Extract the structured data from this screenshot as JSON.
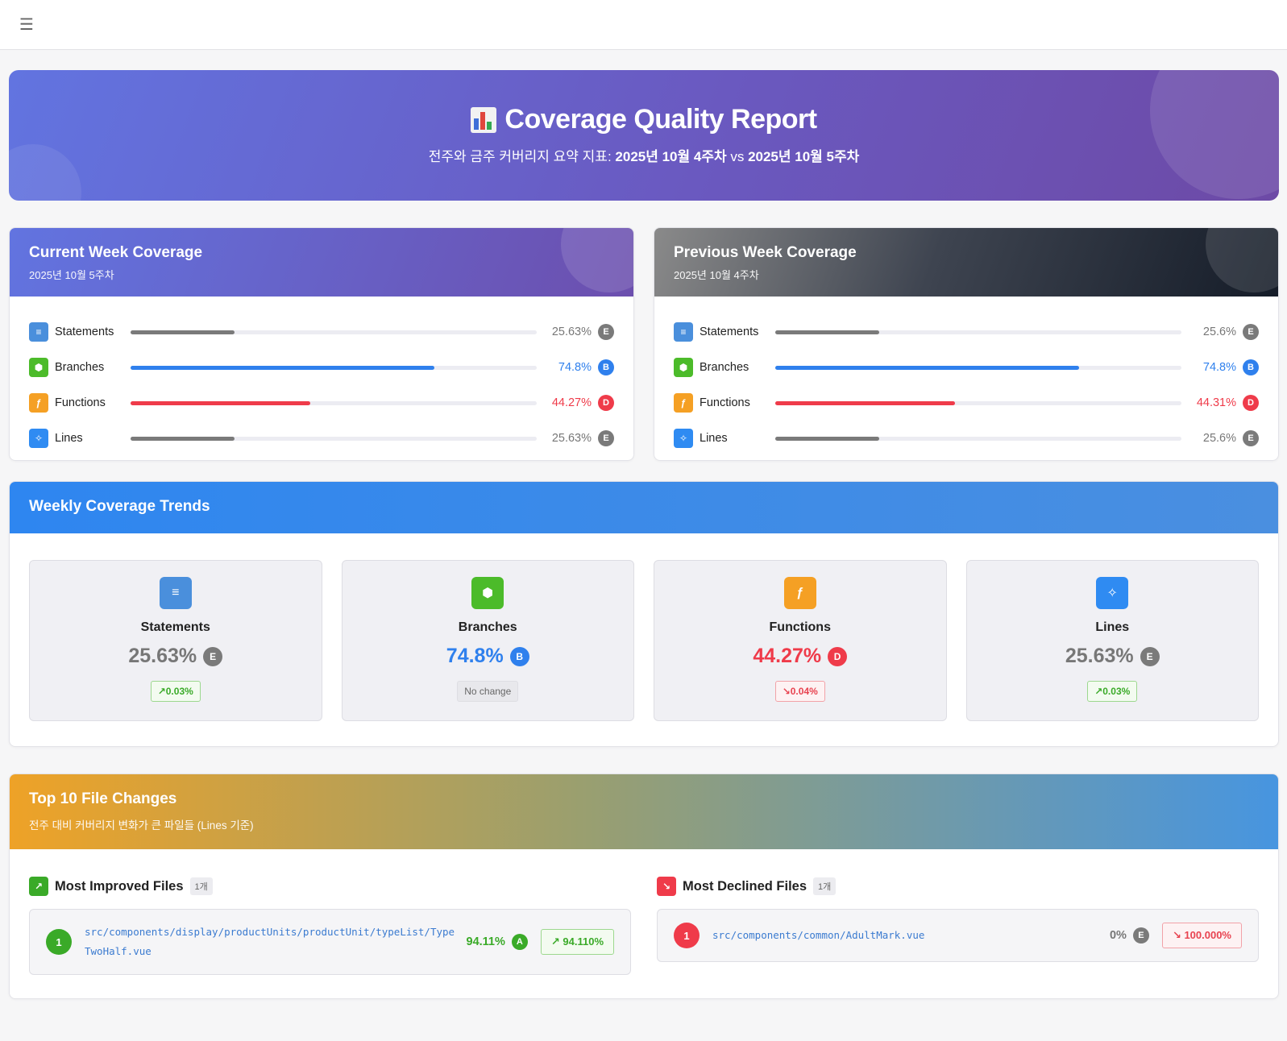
{
  "topbar": {
    "menu_icon": "menu-icon"
  },
  "hero": {
    "title": "Coverage Quality Report",
    "subtitle_prefix": "전주와 금주 커버리지 요약 지표: ",
    "prev_week": "2025년 10월 4주차",
    "vs": " vs ",
    "current_week": "2025년 10월 5주차"
  },
  "current": {
    "title": "Current Week Coverage",
    "week": "2025년 10월 5주차",
    "metrics": [
      {
        "label": "Statements",
        "value": "25.63%",
        "grade": "E",
        "percent": 25.63
      },
      {
        "label": "Branches",
        "value": "74.8%",
        "grade": "B",
        "percent": 74.8
      },
      {
        "label": "Functions",
        "value": "44.27%",
        "grade": "D",
        "percent": 44.27
      },
      {
        "label": "Lines",
        "value": "25.63%",
        "grade": "E",
        "percent": 25.63
      }
    ]
  },
  "previous": {
    "title": "Previous Week Coverage",
    "week": "2025년 10월 4주차",
    "metrics": [
      {
        "label": "Statements",
        "value": "25.6%",
        "grade": "E",
        "percent": 25.6
      },
      {
        "label": "Branches",
        "value": "74.8%",
        "grade": "B",
        "percent": 74.8
      },
      {
        "label": "Functions",
        "value": "44.31%",
        "grade": "D",
        "percent": 44.31
      },
      {
        "label": "Lines",
        "value": "25.6%",
        "grade": "E",
        "percent": 25.6
      }
    ]
  },
  "trends": {
    "title": "Weekly Coverage Trends",
    "items": [
      {
        "label": "Statements",
        "value": "25.63%",
        "grade": "E",
        "change": "↗0.03%"
      },
      {
        "label": "Branches",
        "value": "74.8%",
        "grade": "B",
        "change": "No change"
      },
      {
        "label": "Functions",
        "value": "44.27%",
        "grade": "D",
        "change": "↘0.04%"
      },
      {
        "label": "Lines",
        "value": "25.63%",
        "grade": "E",
        "change": "↗0.03%"
      }
    ]
  },
  "files": {
    "title": "Top 10 File Changes",
    "subtitle": "전주 대비 커버리지 변화가 큰 파일들 (Lines 기준)",
    "improved": {
      "title": "Most Improved Files",
      "count": "1개",
      "items": [
        {
          "rank": "1",
          "path": "src/components/display/productUnits/productUnit/typeList/TypeTwoHalf.vue",
          "value": "94.11%",
          "grade": "A",
          "change": "↗ 94.110%"
        }
      ]
    },
    "declined": {
      "title": "Most Declined Files",
      "count": "1개",
      "items": [
        {
          "rank": "1",
          "path": "src/components/common/AdultMark.vue",
          "value": "0%",
          "grade": "E",
          "change": "↘ 100.000%"
        }
      ]
    }
  },
  "colors": {
    "statements": "#4a8fdc",
    "branches": "#4cbb2a",
    "functions": "#f5a024",
    "lines": "#2f8bf2",
    "grade_A": "#3aaa28",
    "grade_B": "#2f80ed",
    "grade_D": "#ef3b4a",
    "grade_E": "#7a7a7a"
  },
  "icons": {
    "statements": "list-icon",
    "branches": "hexagon-icon",
    "functions": "function-icon",
    "lines": "sparkle-icon"
  }
}
